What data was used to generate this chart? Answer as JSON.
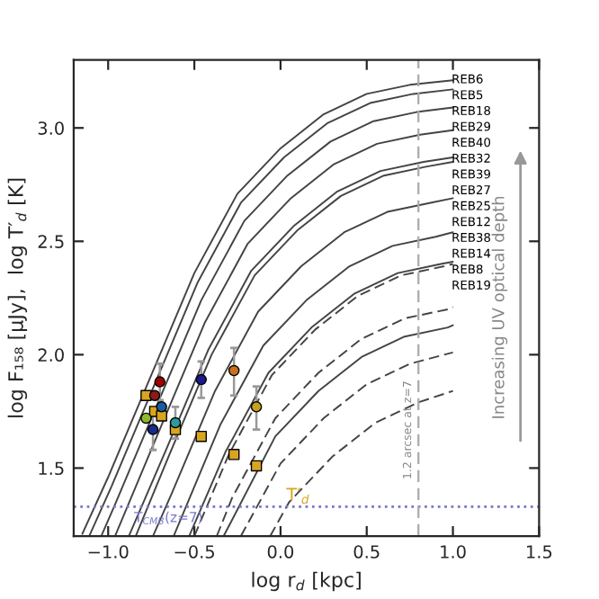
{
  "chart_data": {
    "type": "line",
    "xlabel": "log r$_{d}$ [kpc]",
    "ylabel": "log F₁₅₈ [μJy],  log T′$_{d}$ [K]",
    "xlim": [
      -1.2,
      1.5
    ],
    "ylim": [
      1.2,
      3.3
    ],
    "xticks": [
      {
        "value": -1.0,
        "label": "−1.0"
      },
      {
        "value": -0.5,
        "label": "−0.5"
      },
      {
        "value": 0.0,
        "label": "0.0"
      },
      {
        "value": 0.5,
        "label": "0.5"
      },
      {
        "value": 1.0,
        "label": "1.0"
      },
      {
        "value": 1.5,
        "label": "1.5"
      }
    ],
    "yticks": [
      {
        "value": 1.5,
        "label": "1.5"
      },
      {
        "value": 2.0,
        "label": "2.0"
      },
      {
        "value": 2.5,
        "label": "2.5"
      },
      {
        "value": 3.0,
        "label": "3.0"
      }
    ],
    "series": [
      {
        "name": "REB6",
        "color": "#444444",
        "line_style": "solid",
        "x": [
          -1.15,
          -1.0,
          -0.75,
          -0.5,
          -0.25,
          0,
          0.25,
          0.5,
          0.75,
          1.0
        ],
        "values": [
          1.21,
          1.46,
          1.91,
          2.36,
          2.71,
          2.91,
          3.06,
          3.15,
          3.19,
          3.21
        ]
      },
      {
        "name": "REB5",
        "color": "#444444",
        "line_style": "solid",
        "x": [
          -1.11,
          -0.98,
          -0.73,
          -0.48,
          -0.23,
          0.02,
          0.27,
          0.52,
          0.77,
          1.0
        ],
        "values": [
          1.2,
          1.42,
          1.87,
          2.32,
          2.67,
          2.87,
          3.02,
          3.11,
          3.15,
          3.17
        ]
      },
      {
        "name": "REB18",
        "color": "#444444",
        "line_style": "solid",
        "x": [
          -1.04,
          -0.96,
          -0.71,
          -0.46,
          -0.21,
          0.04,
          0.29,
          0.54,
          0.79,
          1.0
        ],
        "values": [
          1.2,
          1.34,
          1.79,
          2.24,
          2.59,
          2.79,
          2.94,
          3.03,
          3.07,
          3.09
        ]
      },
      {
        "name": "REB29",
        "color": "#444444",
        "line_style": "solid",
        "x": [
          -0.96,
          -0.69,
          -0.44,
          -0.19,
          0.06,
          0.31,
          0.56,
          0.81,
          1.0
        ],
        "values": [
          1.2,
          1.69,
          2.14,
          2.49,
          2.69,
          2.84,
          2.93,
          2.97,
          2.99
        ]
      },
      {
        "name": "REB40",
        "color": "#444444",
        "line_style": "solid",
        "x": [
          -0.88,
          -0.67,
          -0.42,
          -0.17,
          0.08,
          0.33,
          0.58,
          0.83,
          1.0
        ],
        "values": [
          1.2,
          1.57,
          2.02,
          2.37,
          2.57,
          2.72,
          2.81,
          2.85,
          2.87
        ]
      },
      {
        "name": "REB32",
        "color": "#444444",
        "line_style": "solid",
        "x": [
          -0.84,
          -0.65,
          -0.4,
          -0.15,
          0.1,
          0.35,
          0.6,
          0.85,
          1.0
        ],
        "values": [
          1.2,
          1.55,
          2.0,
          2.35,
          2.55,
          2.7,
          2.79,
          2.83,
          2.85
        ]
      },
      {
        "name": "REB39",
        "color": "#444444",
        "line_style": "solid",
        "x": [
          -0.74,
          -0.63,
          -0.38,
          -0.13,
          0.12,
          0.37,
          0.62,
          0.87,
          1.0
        ],
        "values": [
          1.2,
          1.39,
          1.84,
          2.19,
          2.39,
          2.54,
          2.63,
          2.67,
          2.69
        ]
      },
      {
        "name": "REB27",
        "color": "#444444",
        "line_style": "solid",
        "x": [
          -0.62,
          -0.35,
          -0.1,
          0.15,
          0.4,
          0.65,
          0.9,
          1.0
        ],
        "values": [
          1.2,
          1.69,
          2.04,
          2.24,
          2.39,
          2.48,
          2.52,
          2.54
        ]
      },
      {
        "name": "REB25",
        "color": "#444444",
        "line_style": "solid",
        "x": [
          -0.53,
          -0.32,
          -0.07,
          0.18,
          0.43,
          0.68,
          0.93,
          1.0
        ],
        "values": [
          1.2,
          1.57,
          1.92,
          2.12,
          2.27,
          2.36,
          2.4,
          2.41
        ]
      },
      {
        "name": "REB12",
        "color": "#444444",
        "line_style": "dashed",
        "x": [
          -0.5,
          -0.3,
          -0.05,
          0.2,
          0.45,
          0.7,
          0.95,
          1.0
        ],
        "values": [
          1.2,
          1.56,
          1.91,
          2.11,
          2.26,
          2.35,
          2.39,
          2.4
        ]
      },
      {
        "name": "REB38",
        "color": "#444444",
        "line_style": "dashed",
        "x": [
          -0.37,
          -0.28,
          -0.03,
          0.22,
          0.47,
          0.72,
          0.97,
          1.0
        ],
        "values": [
          1.2,
          1.37,
          1.72,
          1.92,
          2.07,
          2.16,
          2.2,
          2.21
        ]
      },
      {
        "name": "REB14",
        "color": "#444444",
        "line_style": "solid",
        "x": [
          -0.33,
          -0.03,
          0.22,
          0.47,
          0.72,
          0.97,
          1.0
        ],
        "values": [
          1.2,
          1.64,
          1.84,
          1.99,
          2.08,
          2.12,
          2.13
        ]
      },
      {
        "name": "REB8",
        "color": "#444444",
        "line_style": "dashed",
        "x": [
          -0.23,
          0,
          0.25,
          0.5,
          0.75,
          1.0
        ],
        "values": [
          1.2,
          1.52,
          1.72,
          1.87,
          1.96,
          2.01
        ]
      },
      {
        "name": "REB19",
        "color": "#444444",
        "line_style": "dashed",
        "x": [
          -0.06,
          0.05,
          0.3,
          0.55,
          0.8,
          1.0
        ],
        "values": [
          1.2,
          1.35,
          1.55,
          1.7,
          1.79,
          1.84
        ]
      },
      {
        "type": "scatter",
        "marker": "circle",
        "x": [
          -0.78,
          -0.74,
          -0.73,
          -0.7,
          -0.69,
          -0.61,
          -0.46,
          -0.27,
          -0.14
        ],
        "values": [
          1.72,
          1.67,
          1.82,
          1.88,
          1.77,
          1.7,
          1.89,
          1.93,
          1.77
        ],
        "colors": [
          "#8fb82e",
          "#1a2a8c",
          "#8b1a1a",
          "#a00000",
          "#1a5aa0",
          "#2e9a9a",
          "#1a1a8c",
          "#c8701e",
          "#c8a21e"
        ],
        "errors": [
          null,
          [
            1.58,
            1.76
          ],
          null,
          [
            1.8,
            1.96
          ],
          null,
          [
            1.63,
            1.77
          ],
          [
            1.81,
            1.97
          ],
          [
            1.82,
            2.03
          ],
          [
            1.67,
            1.86
          ]
        ]
      },
      {
        "type": "scatter",
        "marker": "square",
        "name": "T′$_{d}$",
        "color": "#d9a520",
        "x": [
          -0.78,
          -0.73,
          -0.69,
          -0.61,
          -0.46,
          -0.27,
          -0.14
        ],
        "values": [
          1.82,
          1.75,
          1.73,
          1.67,
          1.64,
          1.56,
          1.51
        ]
      }
    ],
    "ref_lines": [
      {
        "axis": "y",
        "value": 1.33,
        "color": "#7777cc",
        "line_style": "dotted"
      },
      {
        "axis": "x",
        "value": 0.8,
        "color": "#aaaaaa",
        "line_style": "dashed"
      }
    ],
    "annotations": [
      "Increasing UV optical depth",
      {
        "text": "T$_{CMB}$(z=7)",
        "x": -0.65,
        "y": 1.33
      },
      {
        "text": "1.2 arcsec at z=7",
        "x": 0.8,
        "y": 1.45
      }
    ],
    "grid": false,
    "legend": false
  }
}
